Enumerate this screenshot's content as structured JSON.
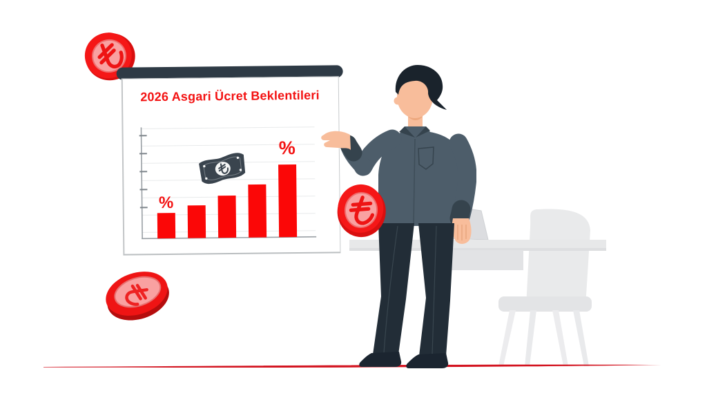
{
  "scene": {
    "description": "Flat illustration: a presenter shows a rising red bar chart about 2026 minimum wage expectations, with Turkish lira coins, a banknote, desk, laptop and chair",
    "board": {
      "title": "2026 Asgari Ücret Beklentileri",
      "title_color": "#f31212"
    },
    "currency_symbol": "₺",
    "colors": {
      "accent_red": "#f31212",
      "bar_red": "#fb0707",
      "board_topbar_dark": "#2e3a45",
      "coin_face_pink": "#f9a1a1",
      "shirt": "#4d5d6a",
      "pants": "#232e39",
      "skin": "#f8bd9b",
      "furniture_gray": "#e8e9ea",
      "ground_line_red": "#d31420",
      "banknote_dark": "#3a444e"
    },
    "coins": [
      {
        "position": "top-left",
        "symbol": "₺"
      },
      {
        "position": "center-near-presenter",
        "symbol": "₺"
      },
      {
        "position": "bottom-left",
        "symbol": "₺"
      }
    ]
  },
  "chart_data": {
    "type": "bar",
    "title": "2026 Asgari Ücret Beklentileri",
    "categories": [
      "",
      "",
      "",
      "",
      ""
    ],
    "values": [
      35,
      45,
      58,
      73,
      100
    ],
    "values_note": "No numeric axis labels are shown in the image; values are relative estimates with tallest bar = 100",
    "bar_color": "#fb0707",
    "xlabel": "",
    "ylabel": "",
    "ylim": [
      0,
      110
    ],
    "grid": true,
    "legend": "none",
    "annotations": [
      {
        "text": "%",
        "bar_index": 0
      },
      {
        "text": "%",
        "bar_index": 4
      }
    ]
  }
}
